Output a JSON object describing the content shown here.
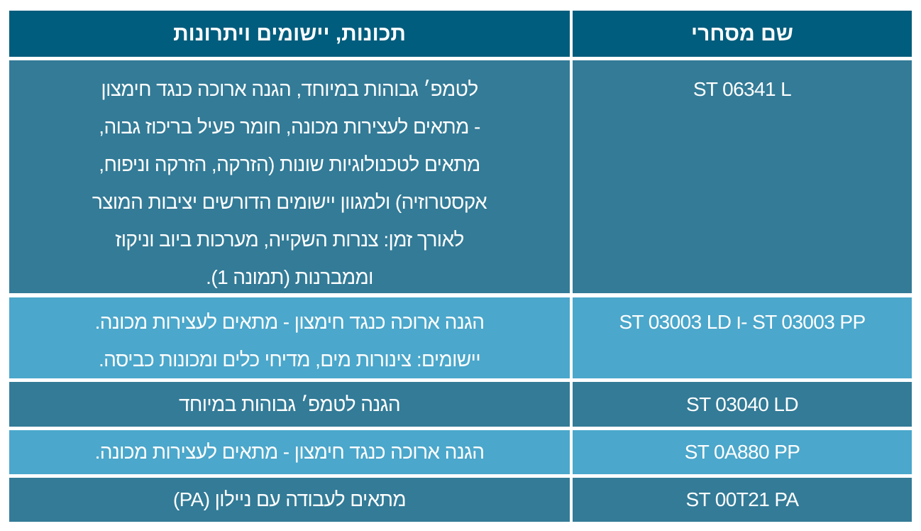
{
  "table": {
    "headers": {
      "name": "שם מסחרי",
      "description": "תכונות, יישומים ויתרונות"
    },
    "rows": [
      {
        "name": "ST 06341 L",
        "lines": [
          "לטמפ׳ גבוהות במיוחד, הגנה ארוכה כנגד חימצון",
          "- מתאים לעצירות מכונה, חומר פעיל בריכוז גבוה,",
          "מתאים לטכנולוגיות שונות (הזרקה, הזרקה וניפוח,",
          "אקסטרוזיה) ולמגוון יישומים הדורשים יציבות המוצר",
          "לאורך זמן: צנרות השקייה, מערכות ביוב וניקוז",
          "וממברנות (תמונה 1)."
        ]
      },
      {
        "name": "ST 03003 PP -ו ST 03003 LD",
        "lines": [
          "הגנה ארוכה כנגד חימצון - מתאים לעצירות מכונה.",
          "יישומים: צינורות מים, מדיחי כלים ומכונות כביסה."
        ]
      },
      {
        "name": "ST 03040 LD",
        "lines": [
          "הגנה לטמפ׳ גבוהות במיוחד"
        ]
      },
      {
        "name": "ST 0A880 PP",
        "lines": [
          "הגנה ארוכה כנגד חימצון - מתאים לעצירות מכונה."
        ]
      },
      {
        "name": "ST 00T21 PA",
        "lines": [
          "מתאים לעבודה עם ניילון (PA)"
        ]
      }
    ]
  },
  "colors": {
    "header": "#005d7d",
    "row_dark": "#337b97",
    "row_light": "#4ba7cb"
  }
}
